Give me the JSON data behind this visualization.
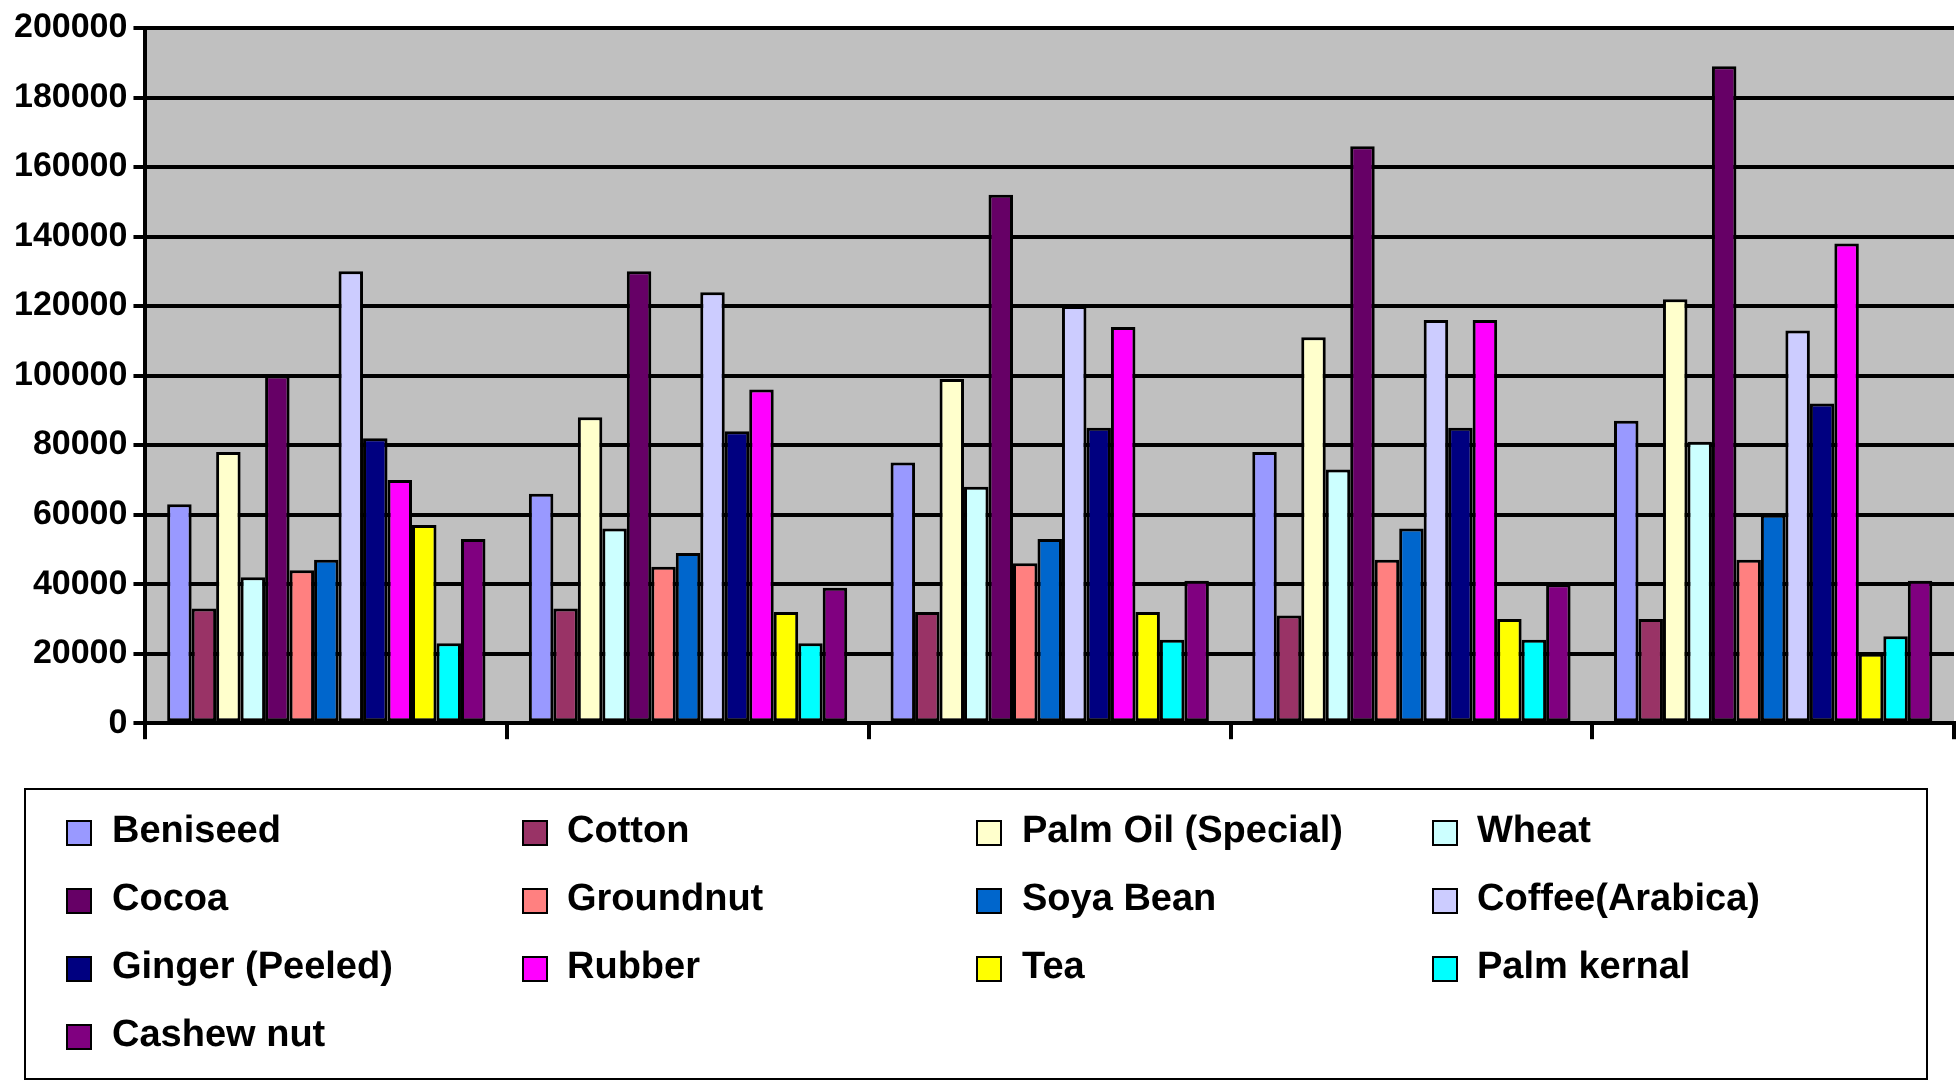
{
  "chart_data": {
    "type": "bar",
    "categories": [
      null,
      null,
      null,
      null,
      null
    ],
    "ylim": [
      0,
      200000
    ],
    "yticks": [
      0,
      20000,
      40000,
      60000,
      80000,
      100000,
      120000,
      140000,
      160000,
      180000,
      200000
    ],
    "grid": "y",
    "legend": "bottom",
    "series": [
      {
        "name": "Beniseed",
        "color": "#9999ff",
        "values": [
          63000,
          66000,
          75000,
          78000,
          87000
        ]
      },
      {
        "name": "Cotton",
        "color": "#993366",
        "values": [
          33000,
          33000,
          32000,
          31000,
          30000
        ]
      },
      {
        "name": "Palm Oil (Special)",
        "color": "#ffffcc",
        "values": [
          78000,
          88000,
          99000,
          111000,
          122000
        ]
      },
      {
        "name": "Wheat",
        "color": "#ccffff",
        "values": [
          42000,
          56000,
          68000,
          73000,
          81000
        ]
      },
      {
        "name": "Cocoa",
        "color": "#660066",
        "values": [
          100000,
          130000,
          152000,
          166000,
          189000
        ]
      },
      {
        "name": "Groundnut",
        "color": "#ff8080",
        "values": [
          44000,
          45000,
          46000,
          47000,
          47000
        ]
      },
      {
        "name": "Soya Bean",
        "color": "#0066cc",
        "values": [
          47000,
          49000,
          53000,
          56000,
          60000
        ]
      },
      {
        "name": "Coffee(Arabica)",
        "color": "#ccccff",
        "values": [
          130000,
          124000,
          120000,
          116000,
          113000
        ]
      },
      {
        "name": "Ginger (Peeled)",
        "color": "#000080",
        "values": [
          82000,
          84000,
          85000,
          85000,
          92000
        ]
      },
      {
        "name": "Rubber",
        "color": "#ff00ff",
        "values": [
          70000,
          96000,
          114000,
          116000,
          138000
        ]
      },
      {
        "name": "Tea",
        "color": "#ffff00",
        "values": [
          57000,
          32000,
          32000,
          30000,
          20000
        ]
      },
      {
        "name": "Palm kernal",
        "color": "#00ffff",
        "values": [
          23000,
          23000,
          24000,
          24000,
          25000
        ]
      },
      {
        "name": "Cashew nut",
        "color": "#800080",
        "values": [
          53000,
          39000,
          41000,
          40000,
          41000
        ]
      }
    ]
  }
}
